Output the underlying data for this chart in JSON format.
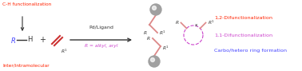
{
  "bg_color": "#ffffff",
  "fig_width": 3.78,
  "fig_height": 0.89,
  "dpi": 100,
  "ch_func_text": "C-H functionalization",
  "ch_func_color": "#ff2200",
  "inter_text": "Inter/intramolecular",
  "inter_color": "#ff2200",
  "pd_ligand_text": "Pd/Ligand",
  "pd_ligand_color": "#333333",
  "R_alkyl_text": "R = alkyl, aryl",
  "R_alkyl_color": "#cc44cc",
  "label_12_text": "1,2-Difunctionalization",
  "label_12_color": "#ff2200",
  "label_11_text": "1,1-Difunctionalization",
  "label_11_color": "#cc44cc",
  "label_carbo_text": "Carbo/hetero ring formation",
  "label_carbo_color": "#4444ff",
  "fontsize_label": 4.6,
  "fontsize_mol": 5.0,
  "fontsize_small": 4.2
}
